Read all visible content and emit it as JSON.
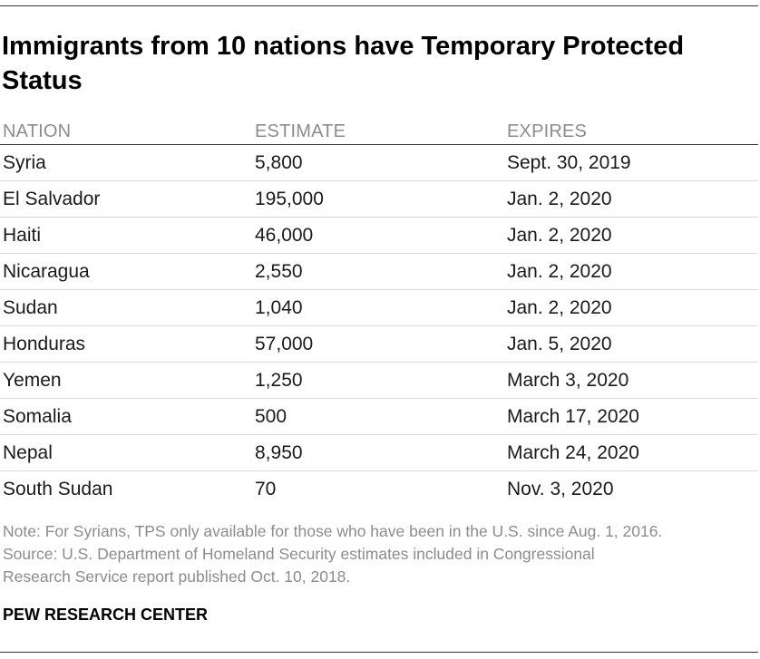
{
  "chart_data": {
    "type": "table",
    "title": "Immigrants from 10 nations have Temporary Protected Status",
    "columns": [
      "NATION",
      "ESTIMATE",
      "EXPIRES"
    ],
    "rows": [
      {
        "nation": "Syria",
        "estimate": "5,800",
        "expires": "Sept. 30, 2019"
      },
      {
        "nation": "El Salvador",
        "estimate": "195,000",
        "expires": "Jan. 2, 2020"
      },
      {
        "nation": "Haiti",
        "estimate": "46,000",
        "expires": "Jan. 2, 2020"
      },
      {
        "nation": "Nicaragua",
        "estimate": "2,550",
        "expires": "Jan. 2, 2020"
      },
      {
        "nation": "Sudan",
        "estimate": "1,040",
        "expires": "Jan. 2, 2020"
      },
      {
        "nation": "Honduras",
        "estimate": "57,000",
        "expires": "Jan. 5, 2020"
      },
      {
        "nation": "Yemen",
        "estimate": "1,250",
        "expires": "March 3, 2020"
      },
      {
        "nation": "Somalia",
        "estimate": "500",
        "expires": "March 17, 2020"
      },
      {
        "nation": "Nepal",
        "estimate": "8,950",
        "expires": "March 24, 2020"
      },
      {
        "nation": "South Sudan",
        "estimate": "70",
        "expires": "Nov. 3, 2020"
      }
    ]
  },
  "notes": {
    "note": "Note: For Syrians, TPS only available for those who have been in the U.S. since Aug. 1, 2016.",
    "source_line1": "Source: U.S. Department of Homeland Security estimates included in Congressional",
    "source_line2": "Research Service report published Oct. 10, 2018."
  },
  "brand": "PEW RESEARCH CENTER",
  "colors": {
    "header_text": "#8c8c8c",
    "note_text": "#8c8c8c",
    "row_divider": "#d9d9d9",
    "rule": "#333333"
  }
}
